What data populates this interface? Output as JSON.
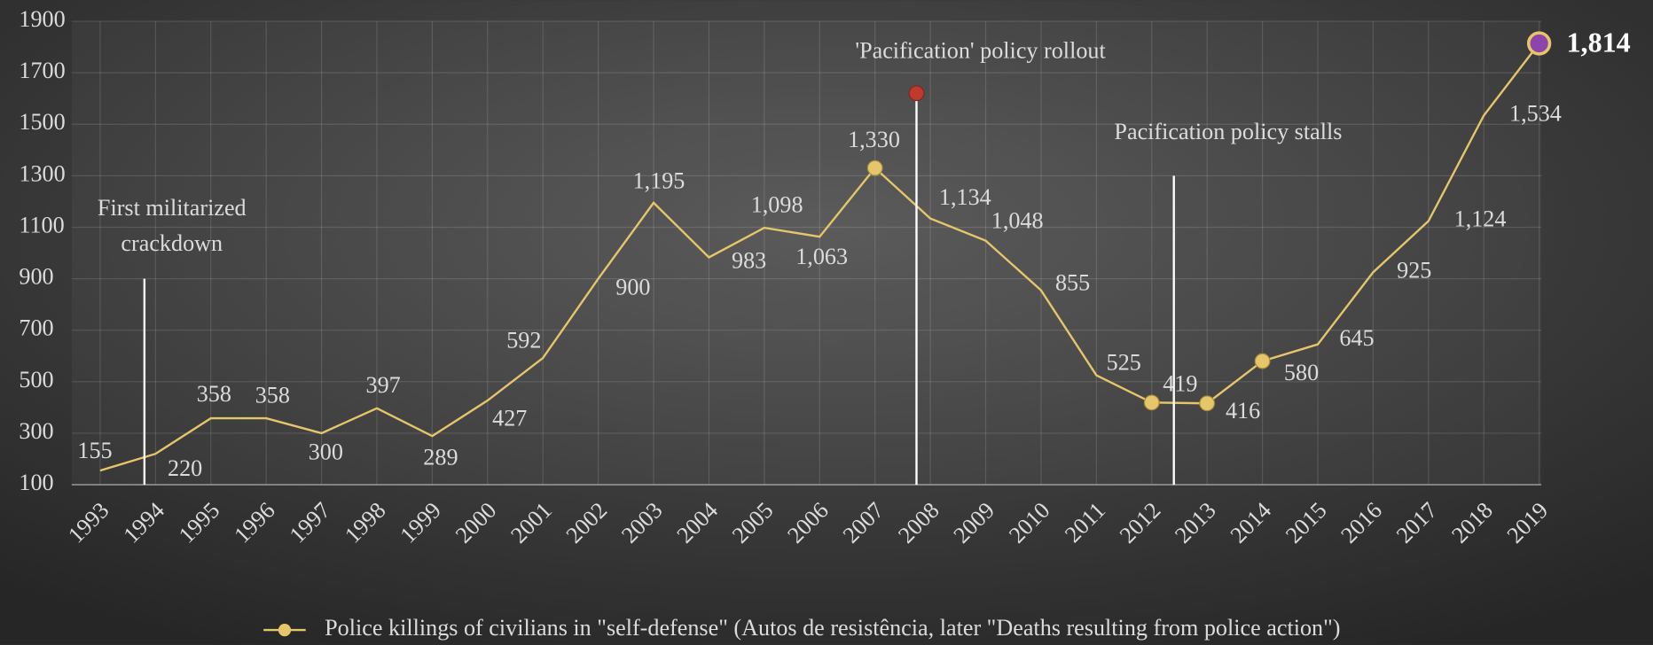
{
  "chart_data": {
    "type": "line",
    "x": [
      1993,
      1994,
      1995,
      1996,
      1997,
      1998,
      1999,
      2000,
      2001,
      2002,
      2003,
      2004,
      2005,
      2006,
      2007,
      2008,
      2009,
      2010,
      2011,
      2012,
      2013,
      2014,
      2015,
      2016,
      2017,
      2018,
      2019
    ],
    "xlim": [
      1993,
      2019
    ],
    "xticks": [
      1993,
      1994,
      1995,
      1996,
      1997,
      1998,
      1999,
      2000,
      2001,
      2002,
      2003,
      2004,
      2005,
      2006,
      2007,
      2008,
      2009,
      2010,
      2011,
      2012,
      2013,
      2014,
      2015,
      2016,
      2017,
      2018,
      2019
    ],
    "ylim": [
      100,
      1900
    ],
    "yticks": [
      100,
      300,
      500,
      700,
      900,
      1100,
      1300,
      1500,
      1700,
      1900
    ],
    "grid": true,
    "series": [
      {
        "name": "Police killings of civilians in \"self-defense\" (Autos de resistência, later \"Deaths resulting from police action\")",
        "color": "#e6c66a",
        "highlight_color": "#8e44ad",
        "values": [
          155,
          220,
          358,
          358,
          300,
          397,
          289,
          427,
          592,
          900,
          1195,
          983,
          1098,
          1063,
          1330,
          1134,
          1048,
          855,
          525,
          419,
          416,
          580,
          645,
          925,
          1124,
          1534,
          1814
        ],
        "value_labels": [
          "155",
          "220",
          "358",
          "358",
          "300",
          "397",
          "289",
          "427",
          "592",
          "900",
          "1,195",
          "983",
          "1,098",
          "1,063",
          "1,330",
          "1,134",
          "1,048",
          "855",
          "525",
          "419",
          "416",
          "580",
          "645",
          "925",
          "1,124",
          "1,534",
          "1,814"
        ]
      }
    ],
    "annotations": [
      {
        "lines": [
          "First militarized",
          "crackdown"
        ],
        "x": 1993.8,
        "y": 900
      },
      {
        "lines": [
          "'Pacification' policy rollout"
        ],
        "x": 2007.75,
        "y": 1600,
        "marker_color": "#c0392b"
      },
      {
        "lines": [
          "Pacification policy stalls"
        ],
        "x": 2012.4,
        "y": 1300
      }
    ]
  }
}
